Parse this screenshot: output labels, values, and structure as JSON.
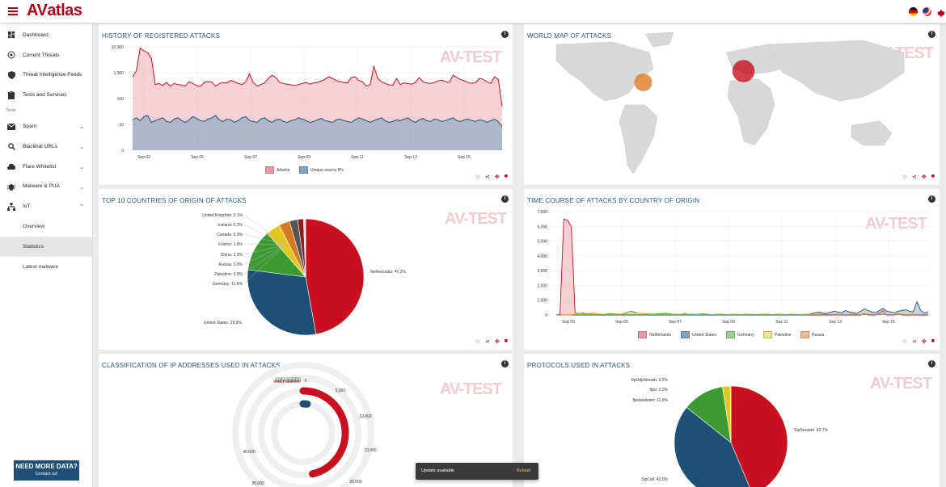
{
  "header": {
    "logo_prefix": "AV",
    "logo_suffix": "atlas"
  },
  "sidebar": {
    "items": [
      {
        "label": "Dashboard",
        "icon": "dashboard-icon"
      },
      {
        "label": "Current Threats",
        "icon": "radar-icon"
      },
      {
        "label": "Threat Intelligence Feeds",
        "icon": "shield-icon"
      },
      {
        "label": "Tests and Services",
        "icon": "clipboard-icon"
      }
    ],
    "section_label": "Tools",
    "tools": [
      {
        "label": "Spam",
        "icon": "mail-icon",
        "chevron": "⌄"
      },
      {
        "label": "Blackhat URLs",
        "icon": "search-icon",
        "chevron": "⌄"
      },
      {
        "label": "Flare Whitelist",
        "icon": "cloud-icon",
        "chevron": "⌄"
      },
      {
        "label": "Malware & PUA",
        "icon": "bug-icon",
        "chevron": "⌄"
      },
      {
        "label": "IoT",
        "icon": "network-icon",
        "chevron": "⌃"
      }
    ],
    "subitems": [
      "Overview",
      "Statistics",
      "Latest malware"
    ],
    "need_data_title": "NEED MORE DATA?",
    "need_data_sub": "Contact us!"
  },
  "panels": {
    "history_title": "HISTORY OF REGISTERED ATTACKS",
    "worldmap_title": "WORLD MAP OF ATTACKS",
    "top10_title": "TOP 10 COUNTRIES OF ORIGIN OF ATTACKS",
    "timecourse_title": "TIME COURSE OF ATTACKS BY COUNTRY OF ORIGIN",
    "classification_title": "CLASSIFICATION OF IP ADDRESSES USED IN ATTACKS",
    "protocols_title": "PROTOCOLS USED IN ATTACKS",
    "watermark": "AV-TEST"
  },
  "snackbar": {
    "message": "Update available",
    "action": "Reload"
  },
  "chart_data": [
    {
      "type": "area",
      "title": "HISTORY OF REGISTERED ATTACKS",
      "scale": "log",
      "y_ticks": [
        "10,000",
        "1,000",
        "100",
        "10",
        "0"
      ],
      "x_ticks": [
        "Sep 03",
        "Sep 05",
        "Sep 07",
        "Sep 09",
        "Sep 11",
        "Sep 13",
        "Sep 15"
      ],
      "series": [
        {
          "name": "Attacks",
          "color": "#e89aa4",
          "values": [
            700,
            1200,
            9000,
            7000,
            6000,
            3500,
            350,
            380,
            320,
            420,
            300,
            380,
            350,
            330,
            310,
            450,
            380,
            320,
            300,
            420,
            460,
            430,
            300,
            380,
            420,
            400,
            500,
            450,
            380,
            350,
            440,
            900,
            420,
            300,
            350,
            400,
            600,
            800,
            650,
            420,
            380,
            360,
            340,
            320,
            350,
            380,
            420,
            360,
            400,
            420,
            480,
            550,
            700,
            600,
            500,
            450,
            420,
            400,
            650,
            700,
            500,
            450,
            300,
            350,
            1800,
            600,
            450,
            380,
            340,
            330,
            600,
            350,
            400,
            380,
            360,
            420,
            650,
            450,
            400,
            380,
            420,
            480,
            520,
            450,
            420,
            800,
            650,
            550,
            480,
            420,
            380,
            420,
            600,
            550,
            450,
            380,
            700,
            550,
            50
          ]
        },
        {
          "name": "Unique source IPs",
          "color": "#7fa3c2",
          "values": [
            15,
            18,
            14,
            20,
            22,
            12,
            14,
            16,
            18,
            13,
            12,
            16,
            18,
            14,
            12,
            15,
            20,
            17,
            14,
            13,
            16,
            18,
            22,
            15,
            13,
            16,
            15,
            12,
            14,
            18,
            20,
            14,
            13,
            12,
            16,
            18,
            14,
            12,
            15,
            16,
            13,
            12,
            14,
            15,
            18,
            16,
            14,
            12,
            13,
            15,
            17,
            14,
            13,
            12,
            15,
            16,
            14,
            13,
            12,
            15,
            18,
            16,
            14,
            12,
            14,
            16,
            18,
            14,
            12,
            13,
            15,
            14,
            16,
            18,
            14,
            12,
            15,
            17,
            14,
            13,
            16,
            15,
            13,
            14,
            16,
            18,
            14,
            13,
            15,
            16,
            14,
            13,
            15,
            14,
            12,
            14,
            16,
            13,
            8
          ]
        }
      ]
    },
    {
      "type": "scatter",
      "title": "WORLD MAP OF ATTACKS",
      "points": [
        {
          "label": "Netherlands",
          "lon": 5,
          "lat": 52,
          "value": 47.2
        },
        {
          "label": "United States",
          "lon": -90,
          "lat": 38,
          "value": 29.9
        }
      ]
    },
    {
      "type": "pie",
      "title": "TOP 10 COUNTRIES OF ORIGIN OF ATTACKS",
      "slices": [
        {
          "label": "Netherlands: 47.2%",
          "value": 47.2,
          "color": "#c8101e"
        },
        {
          "label": "United States: 29.9%",
          "value": 29.9,
          "color": "#1e5075"
        },
        {
          "label": "Germany: 11.6%",
          "value": 11.6,
          "color": "#3b9a32"
        },
        {
          "label": "Palestine: 3.9%",
          "value": 3.9,
          "color": "#e2c81c"
        },
        {
          "label": "Russia: 3.0%",
          "value": 3.0,
          "color": "#d47a22"
        },
        {
          "label": "China: 2.3%",
          "value": 2.3,
          "color": "#555555"
        },
        {
          "label": "France: 1.6%",
          "value": 1.6,
          "color": "#8e1c1c"
        },
        {
          "label": "Canada: 0.3%",
          "value": 0.3,
          "color": "#d8a48a"
        },
        {
          "label": "Iceland: 0.2%",
          "value": 0.2,
          "color": "#b05060"
        },
        {
          "label": "United Kingdom: 0.1%",
          "value": 0.1,
          "color": "#4a90b8"
        }
      ]
    },
    {
      "type": "area",
      "title": "TIME COURSE OF ATTACKS BY COUNTRY OF ORIGIN",
      "ylim": [
        0,
        7000
      ],
      "y_ticks": [
        "7,000",
        "6,000",
        "5,000",
        "4,000",
        "3,000",
        "2,000",
        "1,000",
        "0"
      ],
      "x_ticks": [
        "Sep 03",
        "Sep 05",
        "Sep 07",
        "Sep 09",
        "Sep 11",
        "Sep 13",
        "Sep 15"
      ],
      "series": [
        {
          "name": "Netherlands",
          "color": "#c8101e",
          "values": [
            0,
            50,
            6500,
            6400,
            6000,
            200,
            0,
            0,
            50,
            0,
            0,
            0,
            0,
            0,
            0,
            0,
            0,
            0,
            0,
            0,
            0,
            0,
            0,
            0,
            0,
            0,
            0,
            0,
            0,
            0,
            0,
            0,
            0,
            0,
            0,
            0,
            0,
            0,
            0,
            0,
            0,
            0,
            0,
            0,
            0,
            0,
            0,
            0,
            0,
            0,
            0,
            0,
            0,
            0,
            0,
            0,
            0,
            0,
            0,
            0,
            0,
            0,
            0,
            0,
            0,
            0,
            0,
            0,
            0,
            0,
            0,
            0,
            0,
            0,
            0,
            0,
            0,
            0,
            0,
            0,
            0,
            0,
            100,
            0,
            0,
            0,
            150,
            300,
            0,
            0,
            0,
            100,
            0,
            0,
            0,
            0,
            0,
            0,
            0,
            0
          ]
        },
        {
          "name": "United States",
          "color": "#1e5075",
          "values": [
            0,
            0,
            0,
            0,
            0,
            0,
            0,
            0,
            0,
            0,
            0,
            0,
            0,
            0,
            0,
            0,
            0,
            0,
            0,
            0,
            0,
            0,
            0,
            0,
            0,
            0,
            0,
            0,
            0,
            0,
            0,
            0,
            0,
            0,
            0,
            0,
            0,
            0,
            0,
            0,
            0,
            0,
            0,
            0,
            0,
            0,
            0,
            0,
            0,
            0,
            0,
            0,
            0,
            0,
            0,
            0,
            0,
            0,
            0,
            0,
            0,
            0,
            0,
            0,
            0,
            0,
            0,
            0,
            100,
            150,
            200,
            120,
            100,
            180,
            250,
            200,
            150,
            300,
            200,
            150,
            100,
            250,
            400,
            300,
            200,
            150,
            300,
            450,
            250,
            200,
            150,
            250,
            300,
            350,
            250,
            200,
            900,
            300,
            150,
            200
          ]
        },
        {
          "name": "Germany",
          "color": "#3b9a32",
          "values": [
            0,
            0,
            0,
            0,
            0,
            50,
            100,
            150,
            80,
            100,
            120,
            80,
            60,
            50,
            80,
            100,
            60,
            50,
            80,
            200,
            250,
            180,
            120,
            100,
            80,
            60,
            50,
            80,
            100,
            120,
            80,
            60,
            50,
            40,
            80,
            60,
            50,
            40,
            60,
            80,
            60,
            40,
            30,
            50,
            60,
            40,
            30,
            50,
            40,
            30,
            40,
            50,
            40,
            30,
            40,
            50,
            60,
            40,
            30,
            50,
            40,
            30,
            40,
            50,
            40,
            30,
            40,
            50,
            40,
            30,
            50,
            60,
            40,
            30,
            40,
            50,
            40,
            30,
            40,
            50,
            40,
            30,
            40,
            50,
            40,
            30,
            40,
            50,
            40,
            30,
            40,
            50,
            40,
            30,
            40,
            50,
            40,
            30,
            40,
            30
          ]
        },
        {
          "name": "Palestine",
          "color": "#e2c81c",
          "values": [
            0,
            0,
            0,
            0,
            0,
            100,
            150,
            80,
            60,
            50,
            100,
            80,
            60,
            50,
            40,
            60,
            80,
            60,
            50,
            40,
            100,
            150,
            120,
            80,
            60,
            40,
            30,
            50,
            60,
            40,
            30,
            50,
            40,
            30,
            40,
            50,
            40,
            30,
            40,
            50,
            40,
            30,
            40,
            50,
            40,
            30,
            40,
            50,
            40,
            30,
            40,
            50,
            40,
            30,
            40,
            50,
            40,
            30,
            40,
            50,
            40,
            30,
            40,
            50,
            40,
            30,
            40,
            50,
            40,
            30,
            40,
            50,
            40,
            30,
            40,
            50,
            40,
            30,
            40,
            50,
            40,
            30,
            40,
            50,
            40,
            30,
            40,
            50,
            40,
            30,
            40,
            50,
            40,
            30,
            40,
            50,
            40,
            30,
            40,
            30
          ]
        },
        {
          "name": "Russia",
          "color": "#d47a22",
          "values": [
            0,
            0,
            0,
            0,
            0,
            30,
            50,
            40,
            30,
            20,
            30,
            40,
            30,
            20,
            30,
            40,
            30,
            20,
            30,
            40,
            30,
            20,
            30,
            40,
            30,
            20,
            30,
            40,
            30,
            20,
            30,
            40,
            30,
            20,
            30,
            40,
            30,
            20,
            30,
            40,
            30,
            20,
            30,
            40,
            30,
            20,
            30,
            40,
            30,
            20,
            30,
            40,
            30,
            20,
            30,
            40,
            30,
            20,
            30,
            40,
            30,
            20,
            30,
            40,
            30,
            20,
            30,
            40,
            30,
            20,
            30,
            40,
            30,
            20,
            30,
            40,
            30,
            20,
            30,
            40,
            30,
            20,
            30,
            40,
            30,
            20,
            30,
            40,
            30,
            20,
            30,
            40,
            30,
            20,
            30,
            40,
            30,
            20,
            30,
            20
          ]
        }
      ]
    },
    {
      "type": "bar",
      "title": "CLASSIFICATION OF IP ADDRESSES USED IN ATTACKS",
      "polar": true,
      "ticks": [
        "0",
        "5,000",
        "10,000",
        "13,000",
        "20,000",
        "35,000",
        "40,000"
      ],
      "categories": [
        "mass scanner",
        "bad reputation",
        "known attacker"
      ],
      "colors": [
        "#3b9a32",
        "#1e5075",
        "#c8101e"
      ],
      "values": [
        0,
        1200,
        26000
      ],
      "max": 42000
    },
    {
      "type": "pie",
      "title": "PROTOCOLS USED IN ATTACKS",
      "slices": [
        {
          "label": "SipSession: 43.7%",
          "value": 43.7,
          "color": "#c8101e"
        },
        {
          "label": "SipCall: 42.0%",
          "value": 42.0,
          "color": "#1e5075"
        },
        {
          "label": "ftpdatalisten: 11.9%",
          "value": 11.9,
          "color": "#3b9a32"
        },
        {
          "label": "ftpd: 2.2%",
          "value": 2.2,
          "color": "#e2c81c"
        },
        {
          "label": "ftpUdpStream: 0.2%",
          "value": 0.2,
          "color": "#d47a22"
        }
      ]
    }
  ]
}
